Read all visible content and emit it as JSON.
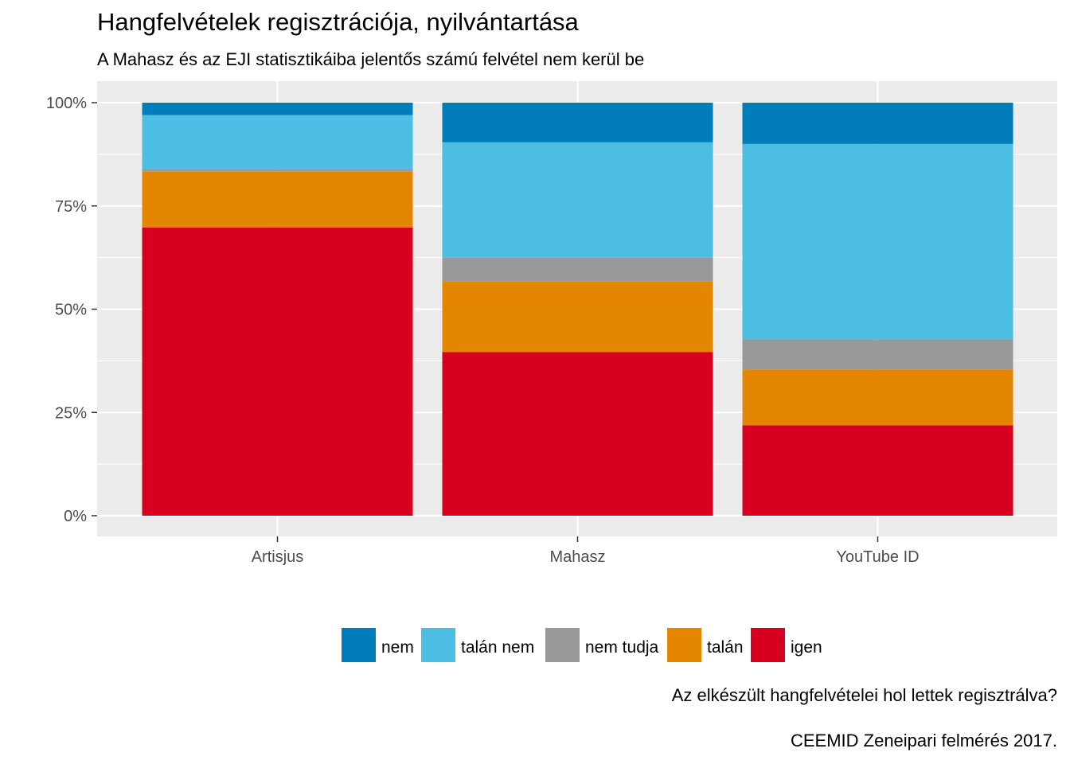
{
  "title": "Hangfelvételek regisztrációja, nyilvántartása",
  "subtitle": "A Mahasz és az EJI statisztikáiba jelentős számú felvétel nem kerül be",
  "caption_line1": "Az elkészült hangfelvételei hol lettek regisztrálva?",
  "caption_line2": "CEEMID Zeneipari felmérés 2017.",
  "chart_data": {
    "type": "bar",
    "stacked": true,
    "normalized": true,
    "categories": [
      "Artisjus",
      "Mahasz",
      "YouTube ID"
    ],
    "series": [
      {
        "name": "igen",
        "color": "#D7001E",
        "values": [
          69.8,
          39.6,
          21.9
        ]
      },
      {
        "name": "talán",
        "color": "#E58600",
        "values": [
          13.5,
          17.1,
          13.5
        ]
      },
      {
        "name": "nem tudja",
        "color": "#999999",
        "values": [
          0.6,
          5.8,
          7.3
        ]
      },
      {
        "name": "talán nem",
        "color": "#4DBEE3",
        "values": [
          13.1,
          27.9,
          47.3
        ]
      },
      {
        "name": "nem",
        "color": "#007DBA",
        "values": [
          3.0,
          9.6,
          10.0
        ]
      }
    ],
    "legend_order": [
      "nem",
      "talán nem",
      "nem tudja",
      "talán",
      "igen"
    ],
    "y_ticks": [
      "0%",
      "25%",
      "50%",
      "75%",
      "100%"
    ],
    "ylim": [
      0,
      100
    ],
    "legend_position": "bottom",
    "grid": true
  }
}
